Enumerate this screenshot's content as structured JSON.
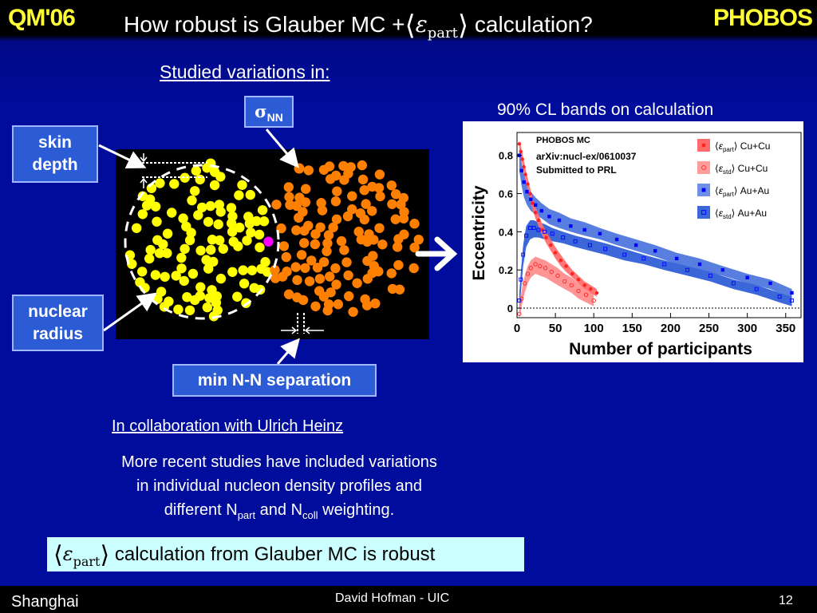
{
  "header": {
    "left_logo_text": "QM'06",
    "title_before": "How robust is Glauber MC +",
    "title_eps": "ε",
    "title_sub": "part",
    "title_after": " calculation?",
    "right_logo_text": "PHOBOS"
  },
  "studied_label": "Studied variations in:",
  "variations": {
    "skin_depth_line1": "skin",
    "skin_depth_line2": "depth",
    "nuclear_radius_line1": "nuclear",
    "nuclear_radius_line2": "radius",
    "sigma_symbol": "σ",
    "sigma_sub": "NN",
    "min_nn_separation": "min N-N separation"
  },
  "cl_bands_label": "90% CL bands on calculation",
  "collaboration_text": "In collaboration with Ulrich Heinz",
  "recent_studies": {
    "line1": "More recent studies have included variations",
    "line2": "in individual nucleon density profiles and",
    "line3_before": "different N",
    "npart_sub": "part",
    "line3_mid": " and N",
    "ncoll_sub": "coll",
    "line3_after": " weighting."
  },
  "conclusion": {
    "eps": "ε",
    "sub": "part",
    "text": " calculation from Glauber MC is robust"
  },
  "footer": {
    "location": "Shanghai",
    "author": "David Hofman - UIC",
    "page": "12"
  },
  "colors": {
    "slide_background": "#000c9c",
    "logo_yellow": "#ffff33",
    "label_box": "#2c5bd6",
    "conclusion_box": "#ccffff",
    "nucleus_a": "#ffff00",
    "nucleus_b": "#ff7f00",
    "participants": "#ff00ff",
    "cucu_band": "#ff7070",
    "auau_band": "#3b67d9"
  },
  "chart_data": {
    "type": "scatter",
    "title": "",
    "header_lines": [
      "PHOBOS MC",
      "arXiv:nucl-ex/0610037",
      "Submitted to PRL"
    ],
    "xlabel": "Number of participants",
    "ylabel": "Eccentricity",
    "xlim": [
      0,
      370
    ],
    "ylim": [
      -0.05,
      0.92
    ],
    "x_ticks": [
      0,
      50,
      100,
      150,
      200,
      250,
      300,
      350
    ],
    "y_ticks": [
      0,
      0.2,
      0.4,
      0.6,
      0.8
    ],
    "legend_position": "top-right",
    "legend": [
      {
        "label_symbol": "ε",
        "label_sub": "part",
        "label_suffix": "Cu+Cu",
        "marker": "filled-circle",
        "color": "#ff2020"
      },
      {
        "label_symbol": "ε",
        "label_sub": "std",
        "label_suffix": "Cu+Cu",
        "marker": "open-circle",
        "color": "#ff2020"
      },
      {
        "label_symbol": "ε",
        "label_sub": "part",
        "label_suffix": "Au+Au",
        "marker": "filled-square",
        "color": "#0000ff"
      },
      {
        "label_symbol": "ε",
        "label_sub": "std",
        "label_suffix": "Au+Au",
        "marker": "open-square",
        "color": "#0000ff"
      }
    ],
    "series": [
      {
        "name": "εpart Cu+Cu",
        "x": [
          3,
          5,
          7,
          9,
          11,
          14,
          17,
          20,
          24,
          28,
          33,
          38,
          44,
          50,
          57,
          64,
          72,
          80,
          88,
          96,
          104
        ],
        "y": [
          0.86,
          0.82,
          0.78,
          0.74,
          0.7,
          0.65,
          0.6,
          0.55,
          0.5,
          0.46,
          0.41,
          0.37,
          0.33,
          0.29,
          0.25,
          0.22,
          0.18,
          0.15,
          0.12,
          0.1,
          0.08
        ],
        "band_upper": [
          0.88,
          0.85,
          0.81,
          0.77,
          0.73,
          0.68,
          0.63,
          0.58,
          0.53,
          0.49,
          0.44,
          0.4,
          0.36,
          0.32,
          0.28,
          0.24,
          0.2,
          0.17,
          0.14,
          0.12,
          0.1
        ],
        "band_lower": [
          0.83,
          0.79,
          0.75,
          0.71,
          0.67,
          0.62,
          0.57,
          0.52,
          0.47,
          0.43,
          0.38,
          0.34,
          0.3,
          0.26,
          0.22,
          0.19,
          0.16,
          0.13,
          0.1,
          0.08,
          0.06
        ]
      },
      {
        "name": "εstd Cu+Cu",
        "x": [
          3,
          6,
          10,
          14,
          18,
          24,
          30,
          37,
          45,
          53,
          62,
          71,
          80,
          90,
          100
        ],
        "y": [
          -0.03,
          0.05,
          0.13,
          0.18,
          0.21,
          0.23,
          0.22,
          0.21,
          0.19,
          0.17,
          0.14,
          0.12,
          0.09,
          0.07,
          0.04
        ],
        "band_upper": [
          0.01,
          0.09,
          0.17,
          0.22,
          0.25,
          0.27,
          0.26,
          0.25,
          0.23,
          0.21,
          0.18,
          0.16,
          0.13,
          0.11,
          0.08
        ],
        "band_lower": [
          -0.06,
          0.01,
          0.08,
          0.13,
          0.16,
          0.18,
          0.17,
          0.16,
          0.14,
          0.12,
          0.1,
          0.08,
          0.05,
          0.03,
          0.01
        ]
      },
      {
        "name": "εpart Au+Au",
        "x": [
          3,
          6,
          9,
          13,
          18,
          24,
          32,
          42,
          55,
          70,
          88,
          108,
          130,
          155,
          180,
          208,
          238,
          268,
          300,
          330,
          358
        ],
        "y": [
          0.8,
          0.72,
          0.66,
          0.61,
          0.57,
          0.54,
          0.51,
          0.48,
          0.46,
          0.43,
          0.41,
          0.39,
          0.36,
          0.33,
          0.3,
          0.26,
          0.23,
          0.2,
          0.16,
          0.13,
          0.08
        ],
        "band_upper": [
          0.84,
          0.76,
          0.7,
          0.65,
          0.61,
          0.58,
          0.55,
          0.52,
          0.5,
          0.47,
          0.45,
          0.42,
          0.39,
          0.36,
          0.33,
          0.29,
          0.26,
          0.22,
          0.18,
          0.15,
          0.1
        ],
        "band_lower": [
          0.72,
          0.64,
          0.58,
          0.54,
          0.51,
          0.49,
          0.47,
          0.44,
          0.42,
          0.4,
          0.38,
          0.36,
          0.33,
          0.3,
          0.27,
          0.23,
          0.2,
          0.17,
          0.13,
          0.1,
          0.05
        ]
      },
      {
        "name": "εstd Au+Au",
        "x": [
          3,
          5,
          8,
          12,
          17,
          22,
          28,
          36,
          46,
          60,
          76,
          95,
          115,
          140,
          165,
          192,
          222,
          252,
          282,
          312,
          342,
          358
        ],
        "y": [
          0.04,
          0.15,
          0.28,
          0.38,
          0.42,
          0.42,
          0.41,
          0.4,
          0.39,
          0.37,
          0.35,
          0.33,
          0.31,
          0.28,
          0.26,
          0.23,
          0.2,
          0.17,
          0.13,
          0.1,
          0.06,
          0.04
        ],
        "band_upper": [
          0.08,
          0.19,
          0.33,
          0.43,
          0.46,
          0.46,
          0.45,
          0.44,
          0.42,
          0.4,
          0.38,
          0.36,
          0.34,
          0.31,
          0.28,
          0.25,
          0.22,
          0.19,
          0.15,
          0.12,
          0.08,
          0.06
        ],
        "band_lower": [
          -0.02,
          0.08,
          0.22,
          0.32,
          0.36,
          0.37,
          0.37,
          0.36,
          0.35,
          0.34,
          0.32,
          0.3,
          0.28,
          0.25,
          0.23,
          0.2,
          0.17,
          0.14,
          0.1,
          0.07,
          0.03,
          0.01
        ]
      }
    ]
  }
}
